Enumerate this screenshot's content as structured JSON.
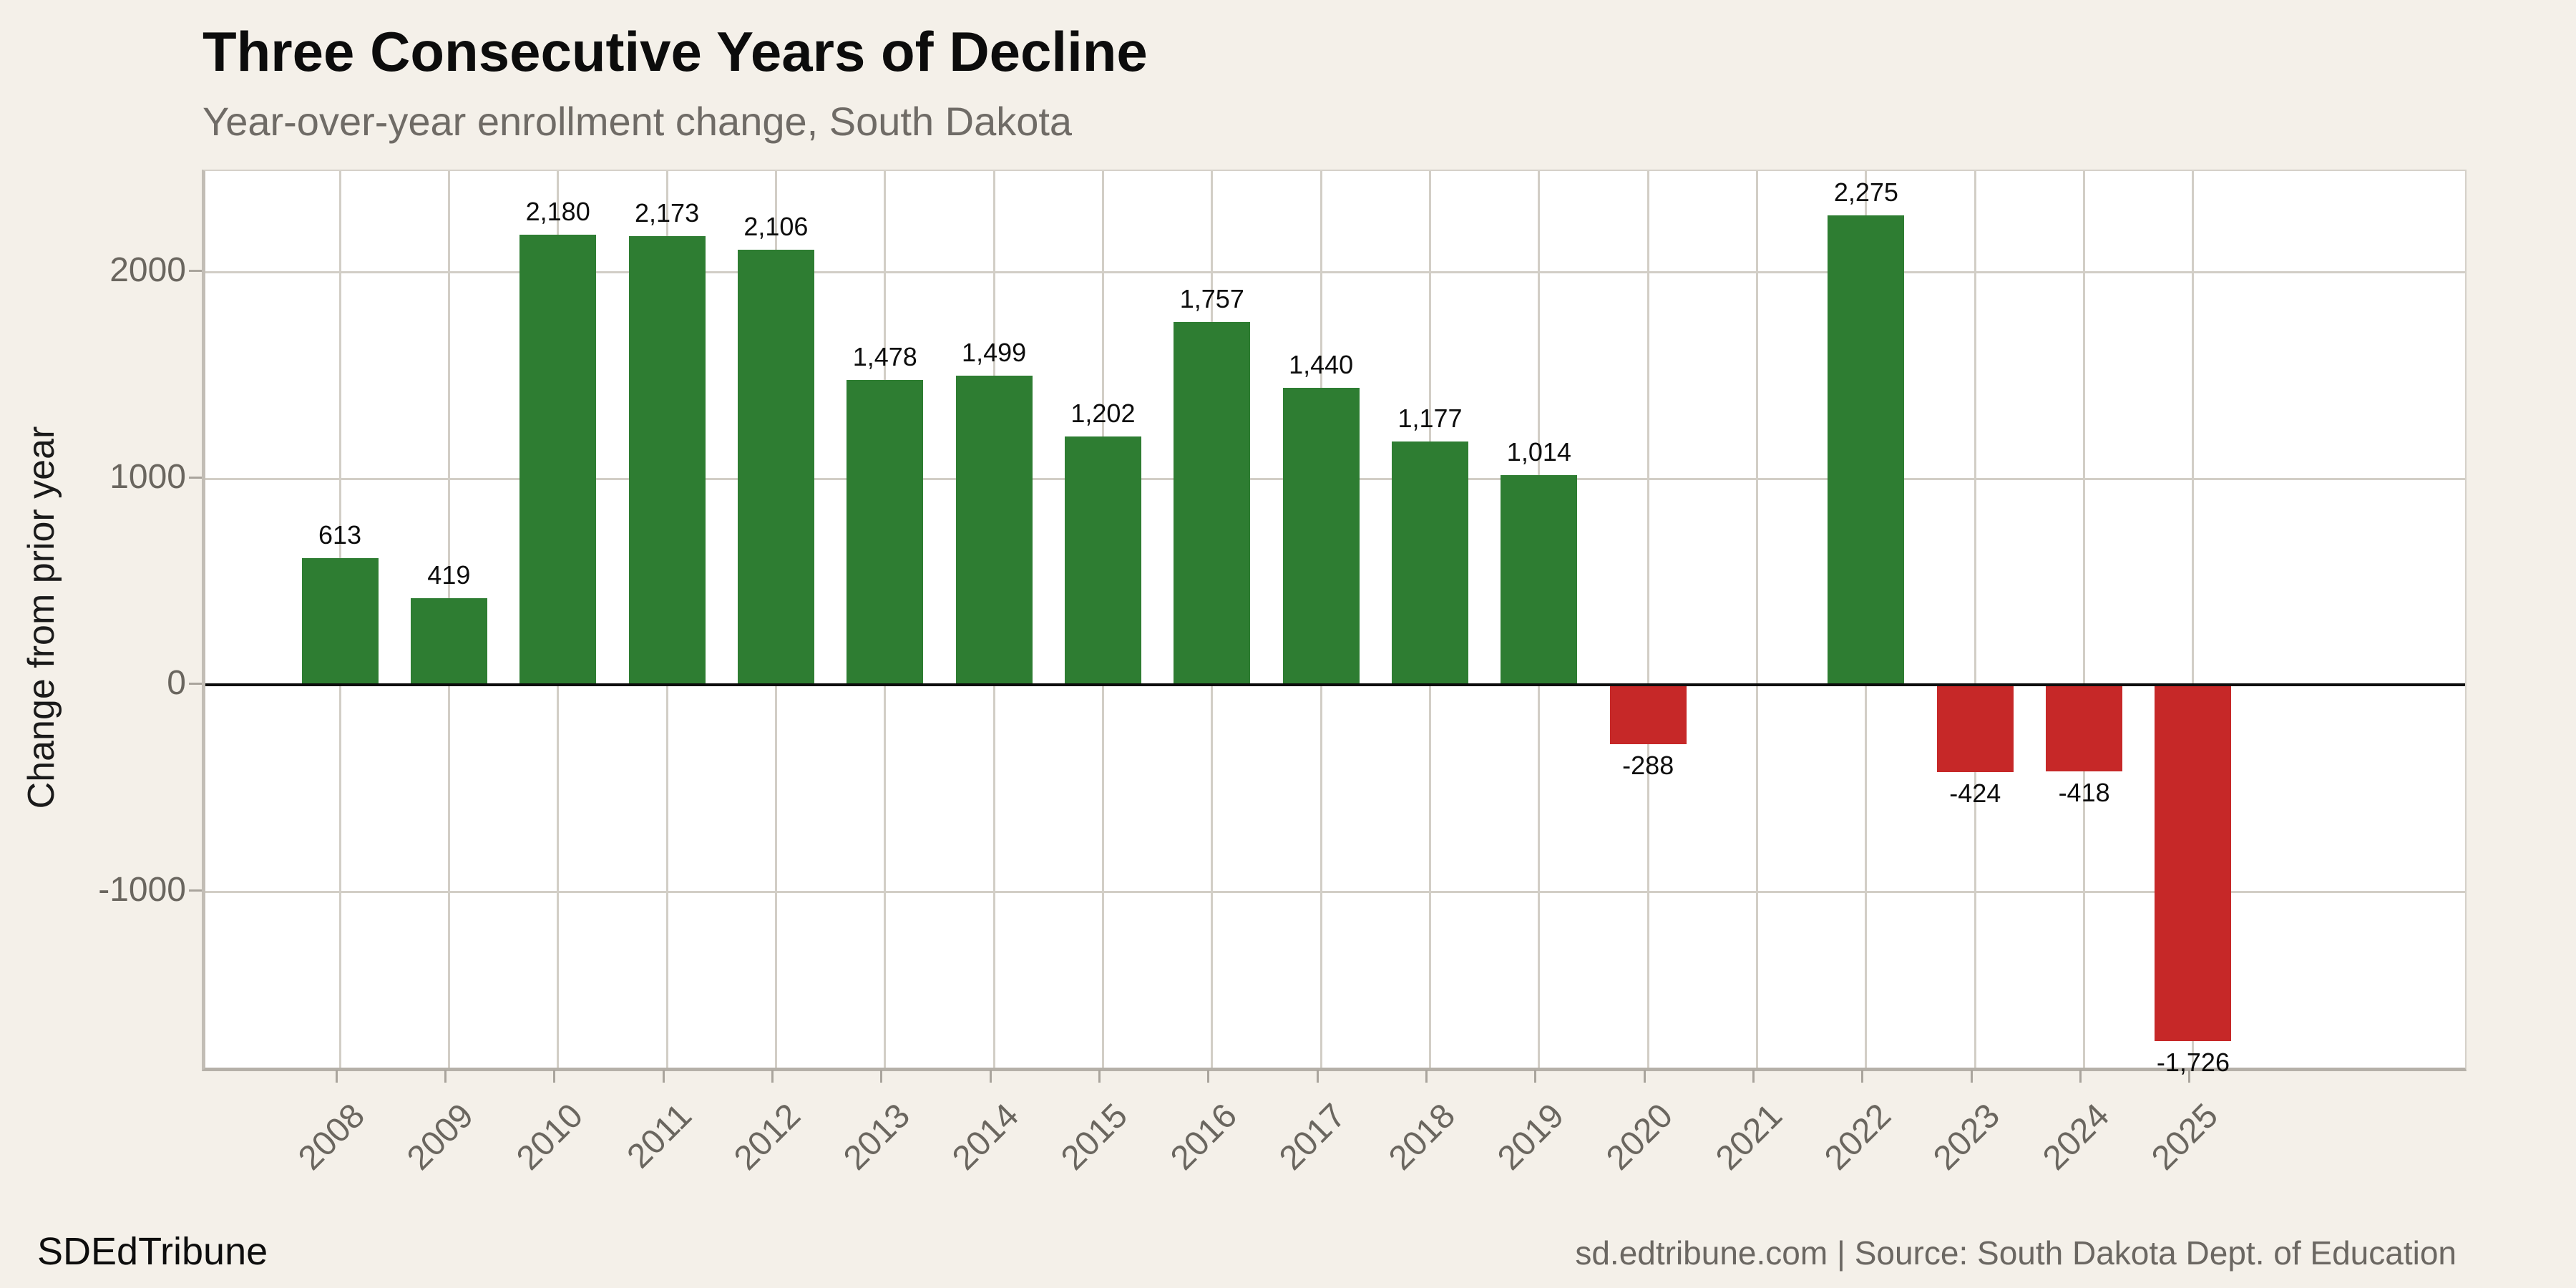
{
  "header": {
    "title": "Three Consecutive Years of Decline",
    "subtitle": "Year-over-year enrollment change, South Dakota"
  },
  "footer": {
    "brand": "SDEdTribune",
    "source": "sd.edtribune.com | Source: South Dakota Dept. of Education"
  },
  "colors": {
    "background": "#f4f0e9",
    "plot_background": "#ffffff",
    "positive_bar": "#2e7d32",
    "negative_bar": "#c62828",
    "gridline": "#d2cec6",
    "axis_border": "#b5b0a8",
    "zero_line": "#0d0d0d",
    "tick_text": "#6a665f",
    "subtitle_text": "#6f6b66",
    "value_label_text": "#0d0d0d"
  },
  "chart_data": {
    "type": "bar",
    "title": "Three Consecutive Years of Decline",
    "subtitle": "Year-over-year enrollment change, South Dakota",
    "xlabel": "",
    "ylabel": "Change from prior year",
    "categories": [
      "2008",
      "2009",
      "2010",
      "2011",
      "2012",
      "2013",
      "2014",
      "2015",
      "2016",
      "2017",
      "2018",
      "2019",
      "2020",
      "2021",
      "2022",
      "2023",
      "2024",
      "2025"
    ],
    "values": [
      613,
      419,
      2180,
      2173,
      2106,
      1478,
      1499,
      1202,
      1757,
      1440,
      1177,
      1014,
      -288,
      null,
      2275,
      -424,
      -418,
      -1726
    ],
    "labels": [
      "613",
      "419",
      "2,180",
      "2,173",
      "2,106",
      "1,478",
      "1,499",
      "1,202",
      "1,757",
      "1,440",
      "1,177",
      "1,014",
      "-288",
      "",
      "2,275",
      "-424",
      "-418",
      "-1,726"
    ],
    "yticks": [
      2000,
      1000,
      0,
      -1000
    ],
    "ytick_labels": [
      "2000",
      "1000",
      "0",
      "-1000"
    ],
    "ylim": [
      -1860,
      2490
    ],
    "grid": true,
    "legend": "none",
    "bar_color_rule": "positive=green, negative=red"
  }
}
